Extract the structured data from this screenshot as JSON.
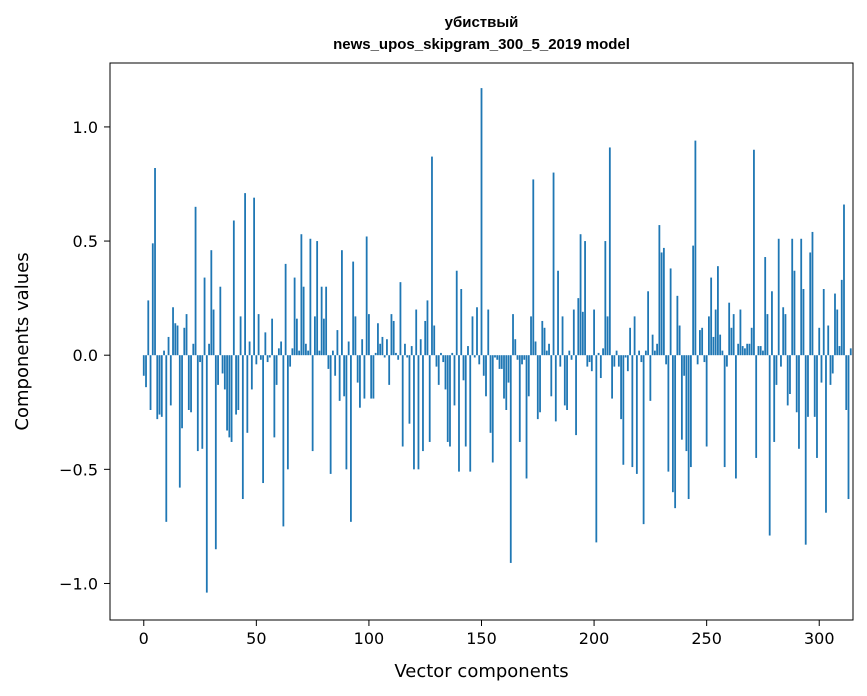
{
  "chart_data": {
    "type": "bar",
    "title_line1": "убиствый",
    "title_line2": "news_upos_skipgram_300_5_2019 model",
    "xlabel": "Vector components",
    "ylabel": "Components values",
    "xlim": [
      -15,
      315
    ],
    "ylim": [
      -1.16,
      1.28
    ],
    "xticks": [
      0,
      50,
      100,
      150,
      200,
      250,
      300
    ],
    "xtick_labels": [
      "0",
      "50",
      "100",
      "150",
      "200",
      "250",
      "300"
    ],
    "yticks": [
      -1.0,
      -0.5,
      0.0,
      0.5,
      1.0
    ],
    "ytick_labels": [
      "−1.0",
      "−0.5",
      "0.0",
      "0.5",
      "1.0"
    ],
    "bar_color": "#1f77b4",
    "values": [
      -0.09,
      -0.14,
      0.24,
      -0.24,
      0.49,
      0.82,
      -0.28,
      -0.26,
      -0.27,
      0.02,
      -0.73,
      0.08,
      -0.22,
      0.21,
      0.14,
      0.13,
      -0.58,
      -0.32,
      0.12,
      0.18,
      -0.24,
      -0.25,
      0.05,
      0.65,
      -0.42,
      -0.03,
      -0.41,
      0.34,
      -1.04,
      0.05,
      0.46,
      0.2,
      -0.85,
      -0.13,
      0.3,
      -0.08,
      -0.15,
      -0.33,
      -0.36,
      -0.38,
      0.59,
      -0.26,
      -0.24,
      0.17,
      -0.63,
      0.71,
      -0.34,
      0.06,
      -0.15,
      0.69,
      -0.04,
      0.18,
      -0.02,
      -0.56,
      0.1,
      -0.03,
      -0.01,
      0.16,
      -0.36,
      -0.13,
      0.03,
      0.06,
      -0.75,
      0.4,
      -0.5,
      -0.05,
      0.03,
      0.34,
      0.16,
      0.02,
      0.53,
      0.3,
      0.05,
      0.02,
      0.51,
      -0.42,
      0.17,
      0.5,
      0.02,
      0.3,
      0.16,
      0.3,
      -0.06,
      -0.52,
      0.02,
      -0.09,
      0.11,
      -0.2,
      0.46,
      -0.18,
      -0.5,
      0.06,
      -0.73,
      0.41,
      0.17,
      -0.12,
      -0.23,
      0.07,
      -0.19,
      0.52,
      0.18,
      -0.19,
      -0.19,
      0.01,
      0.14,
      0.05,
      0.08,
      -0.01,
      0.07,
      -0.13,
      0.18,
      0.15,
      0.01,
      -0.02,
      0.32,
      -0.4,
      0.05,
      -0.01,
      -0.3,
      0.04,
      -0.5,
      0.2,
      -0.5,
      0.07,
      -0.42,
      0.15,
      0.24,
      -0.38,
      0.87,
      0.13,
      -0.05,
      -0.13,
      0.01,
      -0.03,
      -0.15,
      -0.38,
      -0.4,
      0.01,
      -0.22,
      0.37,
      -0.51,
      0.29,
      -0.11,
      -0.4,
      0.04,
      -0.51,
      0.17,
      -0.01,
      0.21,
      -0.04,
      1.17,
      -0.09,
      -0.18,
      0.2,
      -0.34,
      -0.47,
      -0.01,
      -0.02,
      -0.06,
      -0.06,
      -0.19,
      -0.24,
      -0.12,
      -0.91,
      0.18,
      0.07,
      -0.02,
      -0.38,
      -0.04,
      -0.02,
      -0.54,
      -0.18,
      0.17,
      0.77,
      0.06,
      -0.28,
      -0.25,
      0.15,
      0.12,
      0.02,
      0.05,
      -0.18,
      0.8,
      -0.29,
      0.37,
      -0.05,
      0.17,
      -0.22,
      -0.24,
      0.02,
      -0.02,
      0.2,
      -0.35,
      0.25,
      0.53,
      0.19,
      0.5,
      -0.05,
      -0.03,
      -0.07,
      0.2,
      -0.82,
      0.01,
      -0.1,
      0.03,
      0.5,
      0.17,
      0.91,
      -0.19,
      -0.05,
      0.02,
      -0.05,
      -0.28,
      -0.48,
      -0.01,
      -0.07,
      0.12,
      -0.49,
      0.17,
      -0.52,
      0.02,
      -0.03,
      -0.74,
      0.02,
      0.28,
      -0.2,
      0.09,
      0.02,
      0.05,
      0.57,
      0.45,
      0.47,
      -0.04,
      -0.51,
      0.38,
      -0.6,
      -0.67,
      0.26,
      0.13,
      -0.37,
      -0.09,
      -0.42,
      -0.63,
      -0.49,
      0.48,
      0.94,
      -0.04,
      0.11,
      0.12,
      -0.03,
      -0.4,
      0.17,
      0.34,
      0.08,
      0.2,
      0.39,
      0.09,
      0.02,
      -0.49,
      -0.05,
      0.23,
      0.12,
      0.18,
      -0.54,
      0.05,
      0.2,
      0.04,
      0.03,
      0.05,
      0.05,
      0.12,
      0.9,
      -0.45,
      0.04,
      0.04,
      0.02,
      0.43,
      0.18,
      -0.79,
      0.28,
      -0.38,
      -0.13,
      0.51,
      -0.05,
      0.21,
      0.18,
      -0.22,
      -0.17,
      0.51,
      0.37,
      -0.25,
      -0.41,
      0.51,
      0.29,
      -0.83,
      -0.27,
      0.45,
      0.54,
      -0.27,
      -0.45,
      0.12,
      -0.12,
      0.29,
      -0.69,
      0.13,
      -0.13,
      -0.08,
      0.27,
      0.2,
      0.04,
      0.33,
      0.66,
      -0.24,
      -0.63,
      0.03
    ]
  }
}
